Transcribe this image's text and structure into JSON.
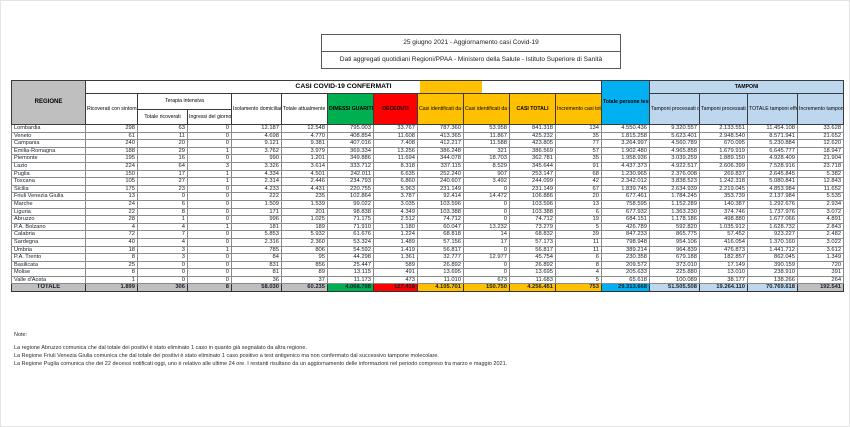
{
  "title": {
    "line1": "25 giugno 2021 - Aggiornamento casi Covid-19",
    "line2": "Dati aggregati quotidiani Regioni/PPAA - Ministero della Salute - Istituto Superiore di Sanità"
  },
  "colors": {
    "green": "#00b050",
    "red": "#ff0000",
    "orange": "#ffc000",
    "blue": "#00b0f0",
    "light_blue": "#bdd7ee",
    "grey": "#bfbfbf"
  },
  "table": {
    "headers": {
      "regione": "REGIONE",
      "casi_confermati": "CASI COVID-19 CONFERMATI",
      "ricoverati": "Ricoverati con sintomi",
      "terapia_intensiva": "Terapia intensiva",
      "ti_totale": "Totale ricoverati",
      "ti_ingressi": "Ingressi del giorno",
      "isolamento": "Isolamento domiciliare",
      "positivi": "Totale attualmente positivi",
      "guariti": "DIMESSI GUARITI",
      "deceduti": "DECEDUTI",
      "casi_molecolare": "Casi identificati da test molecolare",
      "casi_antigenico": "Casi identificati da test antigenico rapido",
      "casi_totali": "CASI TOTALI",
      "incremento_casi": "Incremento casi totali (rispetto al giorno precedente)",
      "persone_testate": "Totale persone testate",
      "tamponi": "TAMPONI",
      "tamponi_molecolare": "Tamponi processati con test molecolare",
      "tamponi_antigenico": "Tamponi processati con test antigenico rapido",
      "tamponi_totale": "TOTALE tamponi effettuati",
      "incremento_tamponi": "Incremento tamponi totali (rispetto al giorno precedente)"
    },
    "rows": [
      {
        "regione": "Lombardia",
        "values": [
          "298",
          "63",
          "0",
          "12.187",
          "12.548",
          "795.003",
          "33.767",
          "787.360",
          "53.958",
          "841.318",
          "134",
          "4.550.436",
          "9.320.557",
          "2.133.551",
          "11.454.108",
          "33.628"
        ]
      },
      {
        "regione": "Veneto",
        "values": [
          "61",
          "11",
          "0",
          "4.698",
          "4.770",
          "408.854",
          "11.608",
          "413.365",
          "11.867",
          "425.232",
          "35",
          "1.815.258",
          "5.623.401",
          "2.948.540",
          "8.571.941",
          "21.652"
        ]
      },
      {
        "regione": "Campania",
        "values": [
          "240",
          "20",
          "0",
          "9.121",
          "9.381",
          "407.016",
          "7.408",
          "412.217",
          "11.588",
          "423.805",
          "77",
          "3.264.997",
          "4.560.789",
          "670.095",
          "5.230.884",
          "12.620"
        ]
      },
      {
        "regione": "Emilia-Romagna",
        "values": [
          "188",
          "29",
          "1",
          "3.762",
          "3.979",
          "369.334",
          "13.256",
          "386.248",
          "321",
          "386.569",
          "57",
          "1.902.480",
          "4.965.858",
          "1.679.919",
          "6.645.777",
          "18.947"
        ]
      },
      {
        "regione": "Piemonte",
        "values": [
          "195",
          "16",
          "0",
          "990",
          "1.201",
          "349.886",
          "11.694",
          "344.078",
          "18.703",
          "362.781",
          "35",
          "1.958.936",
          "3.039.259",
          "1.889.150",
          "4.928.409",
          "21.904"
        ]
      },
      {
        "regione": "Lazio",
        "values": [
          "224",
          "64",
          "3",
          "3.326",
          "3.614",
          "333.712",
          "8.318",
          "337.115",
          "8.529",
          "345.644",
          "91",
          "4.437.373",
          "4.922.517",
          "2.606.399",
          "7.528.916",
          "23.718"
        ]
      },
      {
        "regione": "Puglia",
        "values": [
          "150",
          "17",
          "1",
          "4.334",
          "4.501",
          "242.011",
          "6.635",
          "252.240",
          "907",
          "253.147",
          "68",
          "1.230.965",
          "2.376.008",
          "269.837",
          "2.645.845",
          "5.382"
        ]
      },
      {
        "regione": "Toscana",
        "values": [
          "105",
          "27",
          "1",
          "2.314",
          "2.446",
          "234.793",
          "6.860",
          "240.607",
          "3.492",
          "244.099",
          "42",
          "2.342.012",
          "3.838.523",
          "1.242.318",
          "5.080.841",
          "12.843"
        ]
      },
      {
        "regione": "Sicilia",
        "values": [
          "175",
          "23",
          "0",
          "4.233",
          "4.431",
          "220.755",
          "5.963",
          "231.149",
          "0",
          "231.149",
          "67",
          "1.839.745",
          "2.634.939",
          "2.219.045",
          "4.853.984",
          "11.652"
        ]
      },
      {
        "regione": "Friuli Venezia Giulia",
        "values": [
          "13",
          "0",
          "0",
          "222",
          "235",
          "102.864",
          "3.787",
          "92.414",
          "14.472",
          "106.886",
          "20",
          "677.461",
          "1.784.245",
          "353.739",
          "2.137.984",
          "5.535"
        ]
      },
      {
        "regione": "Marche",
        "values": [
          "24",
          "6",
          "0",
          "1.509",
          "1.539",
          "99.022",
          "3.035",
          "103.596",
          "0",
          "103.596",
          "13",
          "758.595",
          "1.152.289",
          "140.387",
          "1.292.676",
          "2.934"
        ]
      },
      {
        "regione": "Liguria",
        "values": [
          "22",
          "8",
          "0",
          "171",
          "201",
          "98.838",
          "4.349",
          "103.388",
          "0",
          "103.388",
          "6",
          "677.932",
          "1.363.230",
          "374.746",
          "1.737.976",
          "3.072"
        ]
      },
      {
        "regione": "Abruzzo",
        "values": [
          "28",
          "1",
          "0",
          "996",
          "1.025",
          "71.175",
          "2.512",
          "74.712",
          "0",
          "74.712",
          "19",
          "684.151",
          "1.178.186",
          "498.880",
          "1.677.066",
          "4.891"
        ]
      },
      {
        "regione": "P.A. Bolzano",
        "values": [
          "4",
          "4",
          "1",
          "181",
          "189",
          "71.910",
          "1.180",
          "60.047",
          "13.232",
          "73.279",
          "5",
          "426.789",
          "592.820",
          "1.035.912",
          "1.628.732",
          "2.843"
        ]
      },
      {
        "regione": "Calabria",
        "values": [
          "72",
          "7",
          "0",
          "5.853",
          "5.932",
          "61.676",
          "1.224",
          "68.818",
          "14",
          "68.832",
          "39",
          "847.233",
          "865.775",
          "57.452",
          "923.227",
          "2.482"
        ]
      },
      {
        "regione": "Sardegna",
        "values": [
          "40",
          "4",
          "0",
          "2.316",
          "2.360",
          "53.324",
          "1.489",
          "57.156",
          "17",
          "57.173",
          "11",
          "798.948",
          "954.106",
          "416.054",
          "1.370.160",
          "3.022"
        ]
      },
      {
        "regione": "Umbria",
        "values": [
          "18",
          "3",
          "1",
          "785",
          "806",
          "54.592",
          "1.419",
          "56.817",
          "0",
          "56.817",
          "11",
          "389.214",
          "964.839",
          "476.873",
          "1.441.712",
          "3.612"
        ]
      },
      {
        "regione": "P.A. Trento",
        "values": [
          "8",
          "3",
          "0",
          "84",
          "95",
          "44.298",
          "1.361",
          "32.777",
          "12.977",
          "45.754",
          "6",
          "230.358",
          "679.188",
          "182.857",
          "862.045",
          "1.349"
        ]
      },
      {
        "regione": "Basilicata",
        "values": [
          "25",
          "0",
          "0",
          "831",
          "856",
          "25.447",
          "589",
          "26.892",
          "0",
          "26.892",
          "8",
          "209.572",
          "373.010",
          "17.149",
          "390.159",
          "720"
        ]
      },
      {
        "regione": "Molise",
        "values": [
          "8",
          "0",
          "0",
          "81",
          "89",
          "13.115",
          "491",
          "13.695",
          "0",
          "13.695",
          "4",
          "205.633",
          "225.880",
          "13.010",
          "238.910",
          "391"
        ]
      },
      {
        "regione": "Valle d'Aosta",
        "values": [
          "1",
          "0",
          "0",
          "36",
          "37",
          "11.173",
          "473",
          "11.010",
          "673",
          "11.683",
          "5",
          "65.618",
          "100.089",
          "38.177",
          "138.266",
          "264"
        ]
      }
    ],
    "totale": {
      "label": "TOTALE",
      "values": [
        "1.899",
        "306",
        "8",
        "58.030",
        "60.235",
        "4.068.798",
        "127.418",
        "4.105.701",
        "150.750",
        "4.256.451",
        "753",
        "29.313.668",
        "51.505.508",
        "19.264.110",
        "70.769.618",
        "192.541"
      ]
    }
  },
  "notes": {
    "heading": "Note:",
    "lines": [
      "La regione Abruzzo comunica che dal totale dei positivi è stato eliminato 1 caso in quanto già segnalato da altra regione.",
      "La Regione Friuli Venezia Giulia comunica che dal totale dei positivi è stato eliminato 1 caso positivo a test antigenico ma non confermato dal successivo tampone molecolare.",
      "La Regione Puglia comunica che dei 22 decessi notificati oggi, uno è relativo alle ultime 24 ore. I restanti risultano da un aggiornamento delle informazioni nel periodo compreso tra marzo e maggio 2021."
    ]
  }
}
